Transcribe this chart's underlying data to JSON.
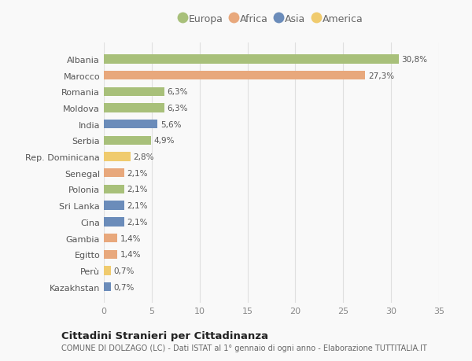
{
  "categories": [
    "Kazakhstan",
    "Perù",
    "Egitto",
    "Gambia",
    "Cina",
    "Sri Lanka",
    "Polonia",
    "Senegal",
    "Rep. Dominicana",
    "Serbia",
    "India",
    "Moldova",
    "Romania",
    "Marocco",
    "Albania"
  ],
  "values": [
    0.7,
    0.7,
    1.4,
    1.4,
    2.1,
    2.1,
    2.1,
    2.1,
    2.8,
    4.9,
    5.6,
    6.3,
    6.3,
    27.3,
    30.8
  ],
  "labels": [
    "0,7%",
    "0,7%",
    "1,4%",
    "1,4%",
    "2,1%",
    "2,1%",
    "2,1%",
    "2,1%",
    "2,8%",
    "4,9%",
    "5,6%",
    "6,3%",
    "6,3%",
    "27,3%",
    "30,8%"
  ],
  "continents": [
    "Asia",
    "America",
    "Africa",
    "Africa",
    "Asia",
    "Asia",
    "Europa",
    "Africa",
    "America",
    "Europa",
    "Asia",
    "Europa",
    "Europa",
    "Africa",
    "Europa"
  ],
  "continent_colors": {
    "Europa": "#a8c07a",
    "Africa": "#e8a87c",
    "Asia": "#6b8cba",
    "America": "#f0cb6e"
  },
  "legend_order": [
    "Europa",
    "Africa",
    "Asia",
    "America"
  ],
  "title": "Cittadini Stranieri per Cittadinanza",
  "subtitle": "COMUNE DI DOLZAGO (LC) - Dati ISTAT al 1° gennaio di ogni anno - Elaborazione TUTTITALIA.IT",
  "xlim": [
    0,
    35
  ],
  "xticks": [
    0,
    5,
    10,
    15,
    20,
    25,
    30,
    35
  ],
  "background_color": "#f9f9f9",
  "grid_color": "#e0e0e0",
  "bar_height": 0.55
}
